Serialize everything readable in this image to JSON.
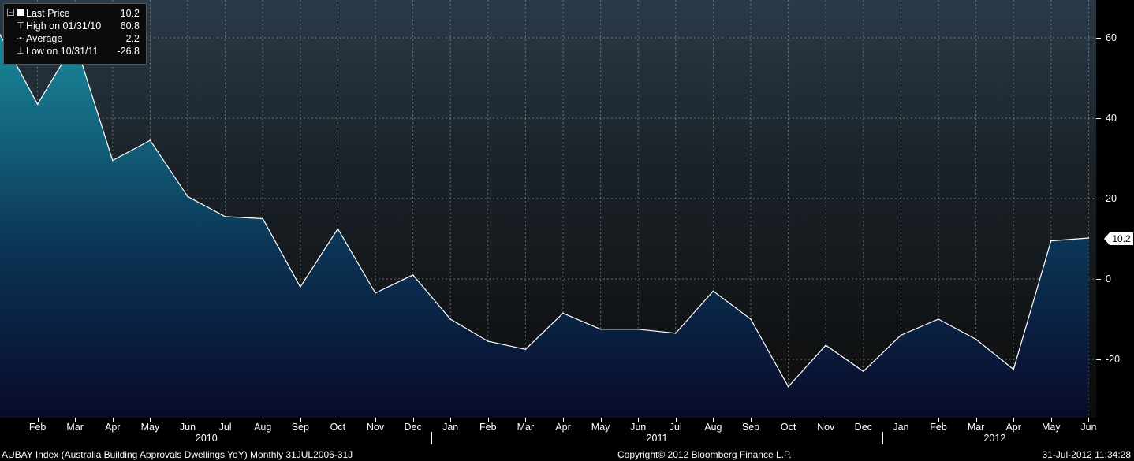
{
  "chart_data": {
    "type": "area",
    "x": [
      "2010-01",
      "2010-02",
      "2010-03",
      "2010-04",
      "2010-05",
      "2010-06",
      "2010-07",
      "2010-08",
      "2010-09",
      "2010-10",
      "2010-11",
      "2010-12",
      "2011-01",
      "2011-02",
      "2011-03",
      "2011-04",
      "2011-05",
      "2011-06",
      "2011-07",
      "2011-08",
      "2011-09",
      "2011-10",
      "2011-11",
      "2011-12",
      "2012-01",
      "2012-02",
      "2012-03",
      "2012-04",
      "2012-05",
      "2012-06"
    ],
    "values": [
      60.8,
      43.5,
      59.0,
      29.5,
      34.5,
      20.5,
      15.5,
      15.0,
      -2.0,
      12.5,
      -3.5,
      1.0,
      -10.0,
      -15.5,
      -17.5,
      -8.5,
      -12.5,
      -12.5,
      -13.5,
      -3.0,
      -10.0,
      -26.8,
      -16.5,
      -23.0,
      -14.0,
      -10.0,
      -15.0,
      -22.5,
      9.5,
      10.2
    ],
    "ylim": [
      -35,
      70
    ],
    "yticks": [
      60,
      40,
      20,
      0,
      -20
    ],
    "ytick_labels": [
      "60",
      "40",
      "20",
      "0",
      "-20"
    ],
    "xtick_labels": [
      "Feb",
      "Mar",
      "Apr",
      "May",
      "Jun",
      "Jul",
      "Aug",
      "Sep",
      "Oct",
      "Nov",
      "Dec",
      "Jan",
      "Feb",
      "Mar",
      "Apr",
      "May",
      "Jun",
      "Jul",
      "Aug",
      "Sep",
      "Oct",
      "Nov",
      "Dec",
      "Jan",
      "Feb",
      "Mar",
      "Apr",
      "May",
      "Jun"
    ],
    "years": [
      "2010",
      "2011",
      "2012"
    ],
    "grid": true,
    "legend_position": "top-left",
    "last_value_label": "10.2",
    "colors": {
      "line": "#ffffff",
      "area_top": "#1a8a9c",
      "area_bottom": "#0a0a2a"
    }
  },
  "legend": {
    "rows": [
      {
        "label": "Last Price",
        "value": "10.2"
      },
      {
        "label": "High on 01/31/10",
        "value": "60.8"
      },
      {
        "label": "Average",
        "value": "2.2"
      },
      {
        "label": "Low on 10/31/11",
        "value": "-26.8"
      }
    ]
  },
  "footer": {
    "left": "AUBAY Index (Australia Building Approvals Dwellings YoY)  Monthly 31JUL2006-31J",
    "center": "Copyright© 2012 Bloomberg Finance L.P.",
    "right": "31-Jul-2012 11:34:28"
  }
}
